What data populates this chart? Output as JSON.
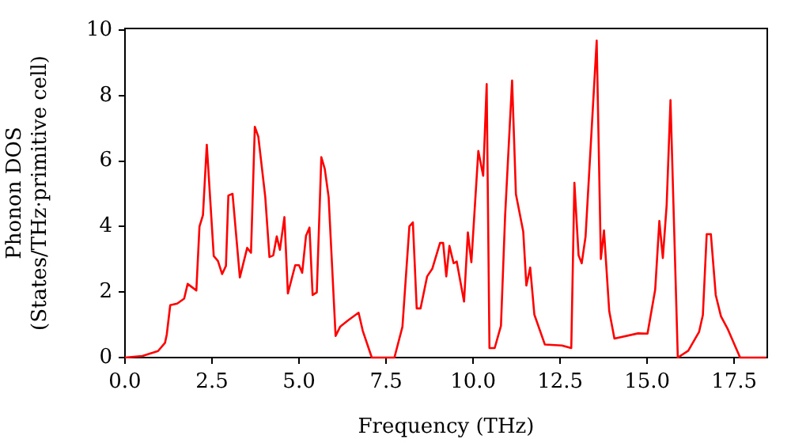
{
  "chart_data": {
    "type": "line",
    "xlabel": "Frequency (THz)",
    "ylabel": "Phonon DOS\n(States/THz·primitive cell)",
    "xlim": [
      0,
      18.45
    ],
    "ylim": [
      0,
      10.05
    ],
    "xticks": [
      {
        "value": 0,
        "label": "0.0"
      },
      2.5,
      {
        "value": 5,
        "label": "5.0"
      },
      7.5,
      {
        "value": 10,
        "label": "10.0"
      },
      12.5,
      {
        "value": 15,
        "label": "15.0"
      },
      17.5
    ],
    "yticks": [
      0,
      2,
      4,
      6,
      8,
      10
    ],
    "grid": false,
    "legend": false,
    "marker": "none",
    "line_style": "solid",
    "series": [
      {
        "color": "#ff0000",
        "x": [
          0,
          0.5,
          0.95,
          1.15,
          1.2,
          1.3,
          1.5,
          1.7,
          1.8,
          2.05,
          2.14,
          2.24,
          2.35,
          2.55,
          2.67,
          2.79,
          2.9,
          2.97,
          3.09,
          3.3,
          3.51,
          3.62,
          3.73,
          3.83,
          4.03,
          4.15,
          4.26,
          4.36,
          4.45,
          4.58,
          4.68,
          4.89,
          5.0,
          5.09,
          5.2,
          5.3,
          5.39,
          5.51,
          5.64,
          5.74,
          5.85,
          6.05,
          6.18,
          6.4,
          6.71,
          6.83,
          7.09,
          7.74,
          7.97,
          8.17,
          8.27,
          8.38,
          8.49,
          8.68,
          8.83,
          9.05,
          9.14,
          9.23,
          9.32,
          9.44,
          9.53,
          9.74,
          9.85,
          9.95,
          10.15,
          10.29,
          10.39,
          10.47,
          10.62,
          10.8,
          10.92,
          11.12,
          11.23,
          11.44,
          11.53,
          11.64,
          11.76,
          12.06,
          12.55,
          12.82,
          12.91,
          13.03,
          13.12,
          13.23,
          13.55,
          13.67,
          13.76,
          13.91,
          14.06,
          14.74,
          15.01,
          15.23,
          15.35,
          15.45,
          15.56,
          15.67,
          15.88,
          16.18,
          16.49,
          16.6,
          16.71,
          16.83,
          16.97,
          17.12,
          17.32,
          17.67,
          18.42
        ],
        "values": [
          0,
          0.05,
          0.2,
          0.45,
          0.7,
          1.6,
          1.65,
          1.8,
          2.25,
          2.05,
          4.0,
          4.35,
          6.5,
          3.1,
          2.95,
          2.55,
          2.8,
          4.95,
          5.0,
          2.45,
          3.35,
          3.2,
          7.05,
          6.75,
          4.9,
          3.07,
          3.12,
          3.7,
          3.29,
          4.29,
          1.96,
          2.82,
          2.82,
          2.59,
          3.72,
          3.97,
          1.91,
          1.99,
          6.12,
          5.76,
          4.9,
          0.66,
          0.94,
          1.13,
          1.37,
          0.82,
          0,
          0,
          0.94,
          4.01,
          4.13,
          1.5,
          1.5,
          2.48,
          2.72,
          3.5,
          3.5,
          2.48,
          3.41,
          2.88,
          2.93,
          1.71,
          3.82,
          2.91,
          6.31,
          5.55,
          8.35,
          0.29,
          0.29,
          0.97,
          4.34,
          8.46,
          4.99,
          3.85,
          2.2,
          2.75,
          1.31,
          0.4,
          0.37,
          0.29,
          5.34,
          3.12,
          2.88,
          3.69,
          9.68,
          3.01,
          3.88,
          1.42,
          0.58,
          0.74,
          0.73,
          2.07,
          4.17,
          3.04,
          4.66,
          7.86,
          0,
          0.21,
          0.78,
          1.3,
          3.77,
          3.77,
          1.91,
          1.26,
          0.86,
          0,
          0
        ]
      }
    ]
  }
}
